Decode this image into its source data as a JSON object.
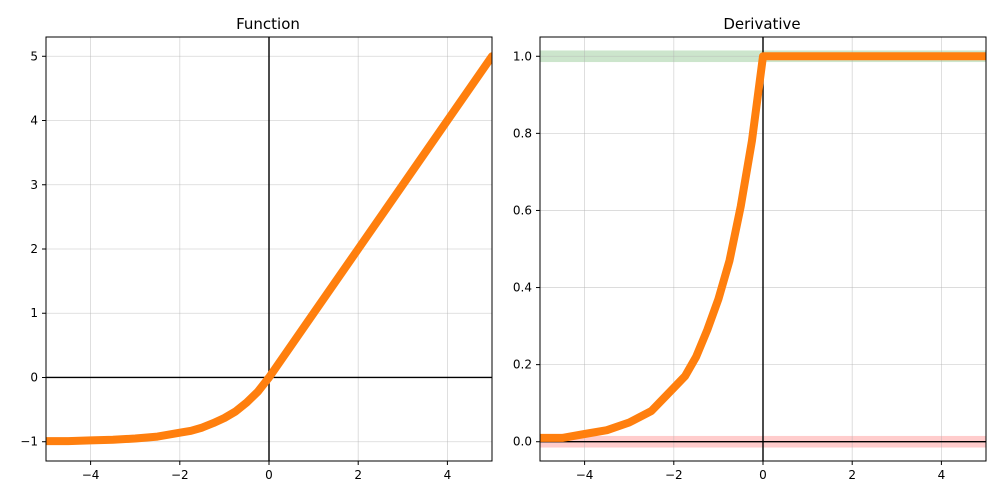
{
  "chart_data": [
    {
      "type": "line",
      "title": "Function",
      "xlabel": "",
      "ylabel": "",
      "xlim": [
        -5,
        5
      ],
      "ylim": [
        -1.3,
        5.3
      ],
      "xticks": [
        -4,
        -2,
        0,
        2,
        4
      ],
      "xtick_labels": [
        "−4",
        "−2",
        "0",
        "2",
        "4"
      ],
      "yticks": [
        -1,
        0,
        1,
        2,
        3,
        4,
        5
      ],
      "ytick_labels": [
        "−1",
        "0",
        "1",
        "2",
        "3",
        "4",
        "5"
      ],
      "grid": true,
      "reference_lines": {
        "x": 0,
        "y": 0
      },
      "bands": [],
      "series": [
        {
          "color": "#ff7f0e",
          "x": [
            -5,
            -4.5,
            -4,
            -3.5,
            -3,
            -2.5,
            -2,
            -1.75,
            -1.5,
            -1.25,
            -1,
            -0.75,
            -0.5,
            -0.25,
            0,
            1,
            2,
            3,
            4,
            5
          ],
          "y": [
            -0.99,
            -0.99,
            -0.98,
            -0.97,
            -0.95,
            -0.92,
            -0.86,
            -0.83,
            -0.78,
            -0.71,
            -0.63,
            -0.53,
            -0.39,
            -0.22,
            0,
            1,
            2,
            3,
            4,
            5
          ]
        }
      ]
    },
    {
      "type": "line",
      "title": "Derivative",
      "xlabel": "",
      "ylabel": "",
      "xlim": [
        -5,
        5
      ],
      "ylim": [
        -0.05,
        1.05
      ],
      "xticks": [
        -4,
        -2,
        0,
        2,
        4
      ],
      "xtick_labels": [
        "−4",
        "−2",
        "0",
        "2",
        "4"
      ],
      "yticks": [
        0,
        0.2,
        0.4,
        0.6,
        0.8,
        1.0
      ],
      "ytick_labels": [
        "0.0",
        "0.2",
        "0.4",
        "0.6",
        "0.8",
        "1.0"
      ],
      "grid": true,
      "reference_lines": {
        "x": 0,
        "y": 0
      },
      "bands": [
        {
          "y0": -0.015,
          "y1": 0.015,
          "color": "#ff9999"
        },
        {
          "y0": 0.985,
          "y1": 1.015,
          "color": "#99cc99"
        }
      ],
      "series": [
        {
          "color": "#ff7f0e",
          "x": [
            -5,
            -4.5,
            -4,
            -3.5,
            -3,
            -2.5,
            -2,
            -1.75,
            -1.5,
            -1.25,
            -1,
            -0.75,
            -0.5,
            -0.25,
            0,
            1,
            2,
            3,
            4,
            5
          ],
          "y": [
            0.01,
            0.01,
            0.02,
            0.03,
            0.05,
            0.08,
            0.14,
            0.17,
            0.22,
            0.29,
            0.37,
            0.47,
            0.61,
            0.78,
            1,
            1,
            1,
            1,
            1,
            1
          ]
        }
      ]
    }
  ]
}
